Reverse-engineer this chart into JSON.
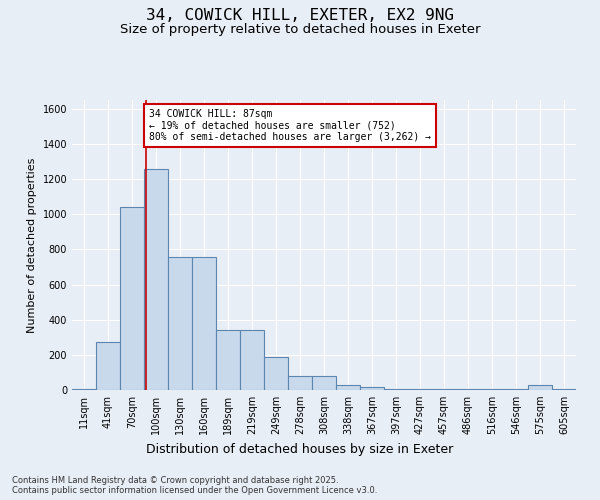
{
  "title_line1": "34, COWICK HILL, EXETER, EX2 9NG",
  "title_line2": "Size of property relative to detached houses in Exeter",
  "xlabel": "Distribution of detached houses by size in Exeter",
  "ylabel": "Number of detached properties",
  "categories": [
    "11sqm",
    "41sqm",
    "70sqm",
    "100sqm",
    "130sqm",
    "160sqm",
    "189sqm",
    "219sqm",
    "249sqm",
    "278sqm",
    "308sqm",
    "338sqm",
    "367sqm",
    "397sqm",
    "427sqm",
    "457sqm",
    "486sqm",
    "516sqm",
    "546sqm",
    "575sqm",
    "605sqm"
  ],
  "values": [
    5,
    275,
    1040,
    1255,
    755,
    755,
    340,
    340,
    185,
    80,
    80,
    30,
    15,
    5,
    5,
    5,
    5,
    5,
    5,
    30,
    5
  ],
  "bar_color": "#c9d9ec",
  "bar_edge_color": "#5b86b0",
  "bar_edge_width": 0.8,
  "red_line_x": 2.57,
  "annotation_text": "34 COWICK HILL: 87sqm\n← 19% of detached houses are smaller (752)\n80% of semi-detached houses are larger (3,262) →",
  "annotation_box_color": "#ffffff",
  "annotation_box_edge_color": "#cc0000",
  "ylim": [
    0,
    1650
  ],
  "yticks": [
    0,
    200,
    400,
    600,
    800,
    1000,
    1200,
    1400,
    1600
  ],
  "background_color": "#e8eef5",
  "grid_color": "#ffffff",
  "footer_line1": "Contains HM Land Registry data © Crown copyright and database right 2025.",
  "footer_line2": "Contains public sector information licensed under the Open Government Licence v3.0.",
  "title_fontsize": 11.5,
  "subtitle_fontsize": 9.5,
  "tick_fontsize": 7,
  "ylabel_fontsize": 8,
  "xlabel_fontsize": 9,
  "footer_fontsize": 6,
  "annotation_fontsize": 7
}
